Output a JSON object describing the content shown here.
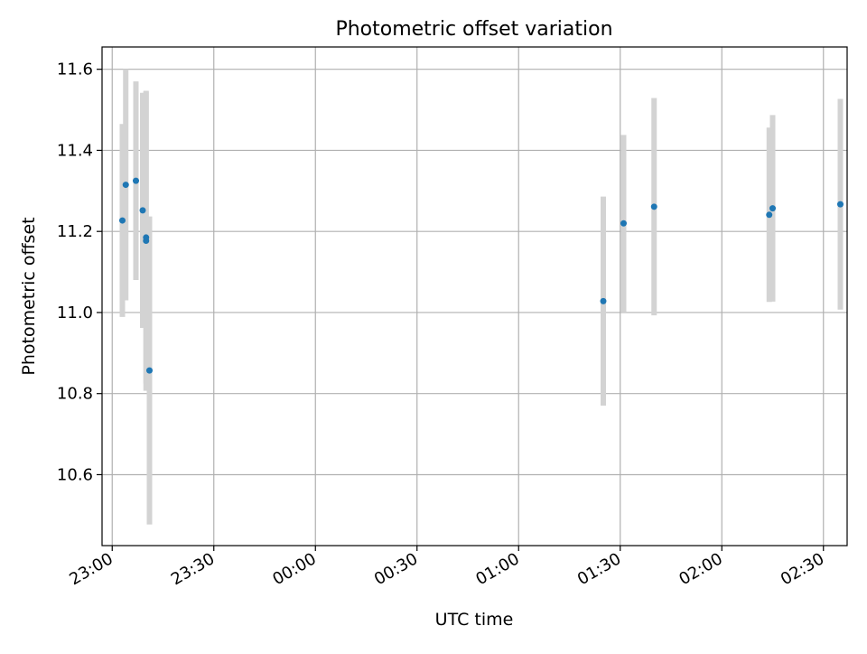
{
  "chart_data": {
    "type": "scatter",
    "title": "Photometric offset variation",
    "xlabel": "UTC time",
    "ylabel": "Photometric offset",
    "x_axis_type": "time",
    "x_ticks": [
      "23:00",
      "23:30",
      "00:00",
      "00:30",
      "01:00",
      "01:30",
      "02:00",
      "02:30"
    ],
    "xlim": [
      "22:57",
      "02:37"
    ],
    "ylim": [
      10.425,
      11.655
    ],
    "y_ticks": [
      10.6,
      10.8,
      11.0,
      11.2,
      11.4,
      11.6
    ],
    "grid": true,
    "series": [
      {
        "marker_color": "#1f77b4",
        "errorbar_color": "#d3d3d3",
        "points": [
          {
            "x": "23:03",
            "y": 11.227,
            "yerr": 0.238
          },
          {
            "x": "23:04",
            "y": 11.315,
            "yerr": 0.285
          },
          {
            "x": "23:07",
            "y": 11.325,
            "yerr": 0.245
          },
          {
            "x": "23:09",
            "y": 11.252,
            "yerr": 0.29
          },
          {
            "x": "23:10",
            "y": 11.177,
            "yerr": 0.37
          },
          {
            "x": "23:10",
            "y": 11.185,
            "yerr": 0.36
          },
          {
            "x": "23:11",
            "y": 10.857,
            "yerr": 0.38
          },
          {
            "x": "01:25",
            "y": 11.028,
            "yerr": 0.258
          },
          {
            "x": "01:31",
            "y": 11.22,
            "yerr": 0.218
          },
          {
            "x": "01:40",
            "y": 11.261,
            "yerr": 0.268
          },
          {
            "x": "02:14",
            "y": 11.241,
            "yerr": 0.215
          },
          {
            "x": "02:15",
            "y": 11.257,
            "yerr": 0.23
          },
          {
            "x": "02:35",
            "y": 11.267,
            "yerr": 0.26
          }
        ]
      }
    ]
  }
}
